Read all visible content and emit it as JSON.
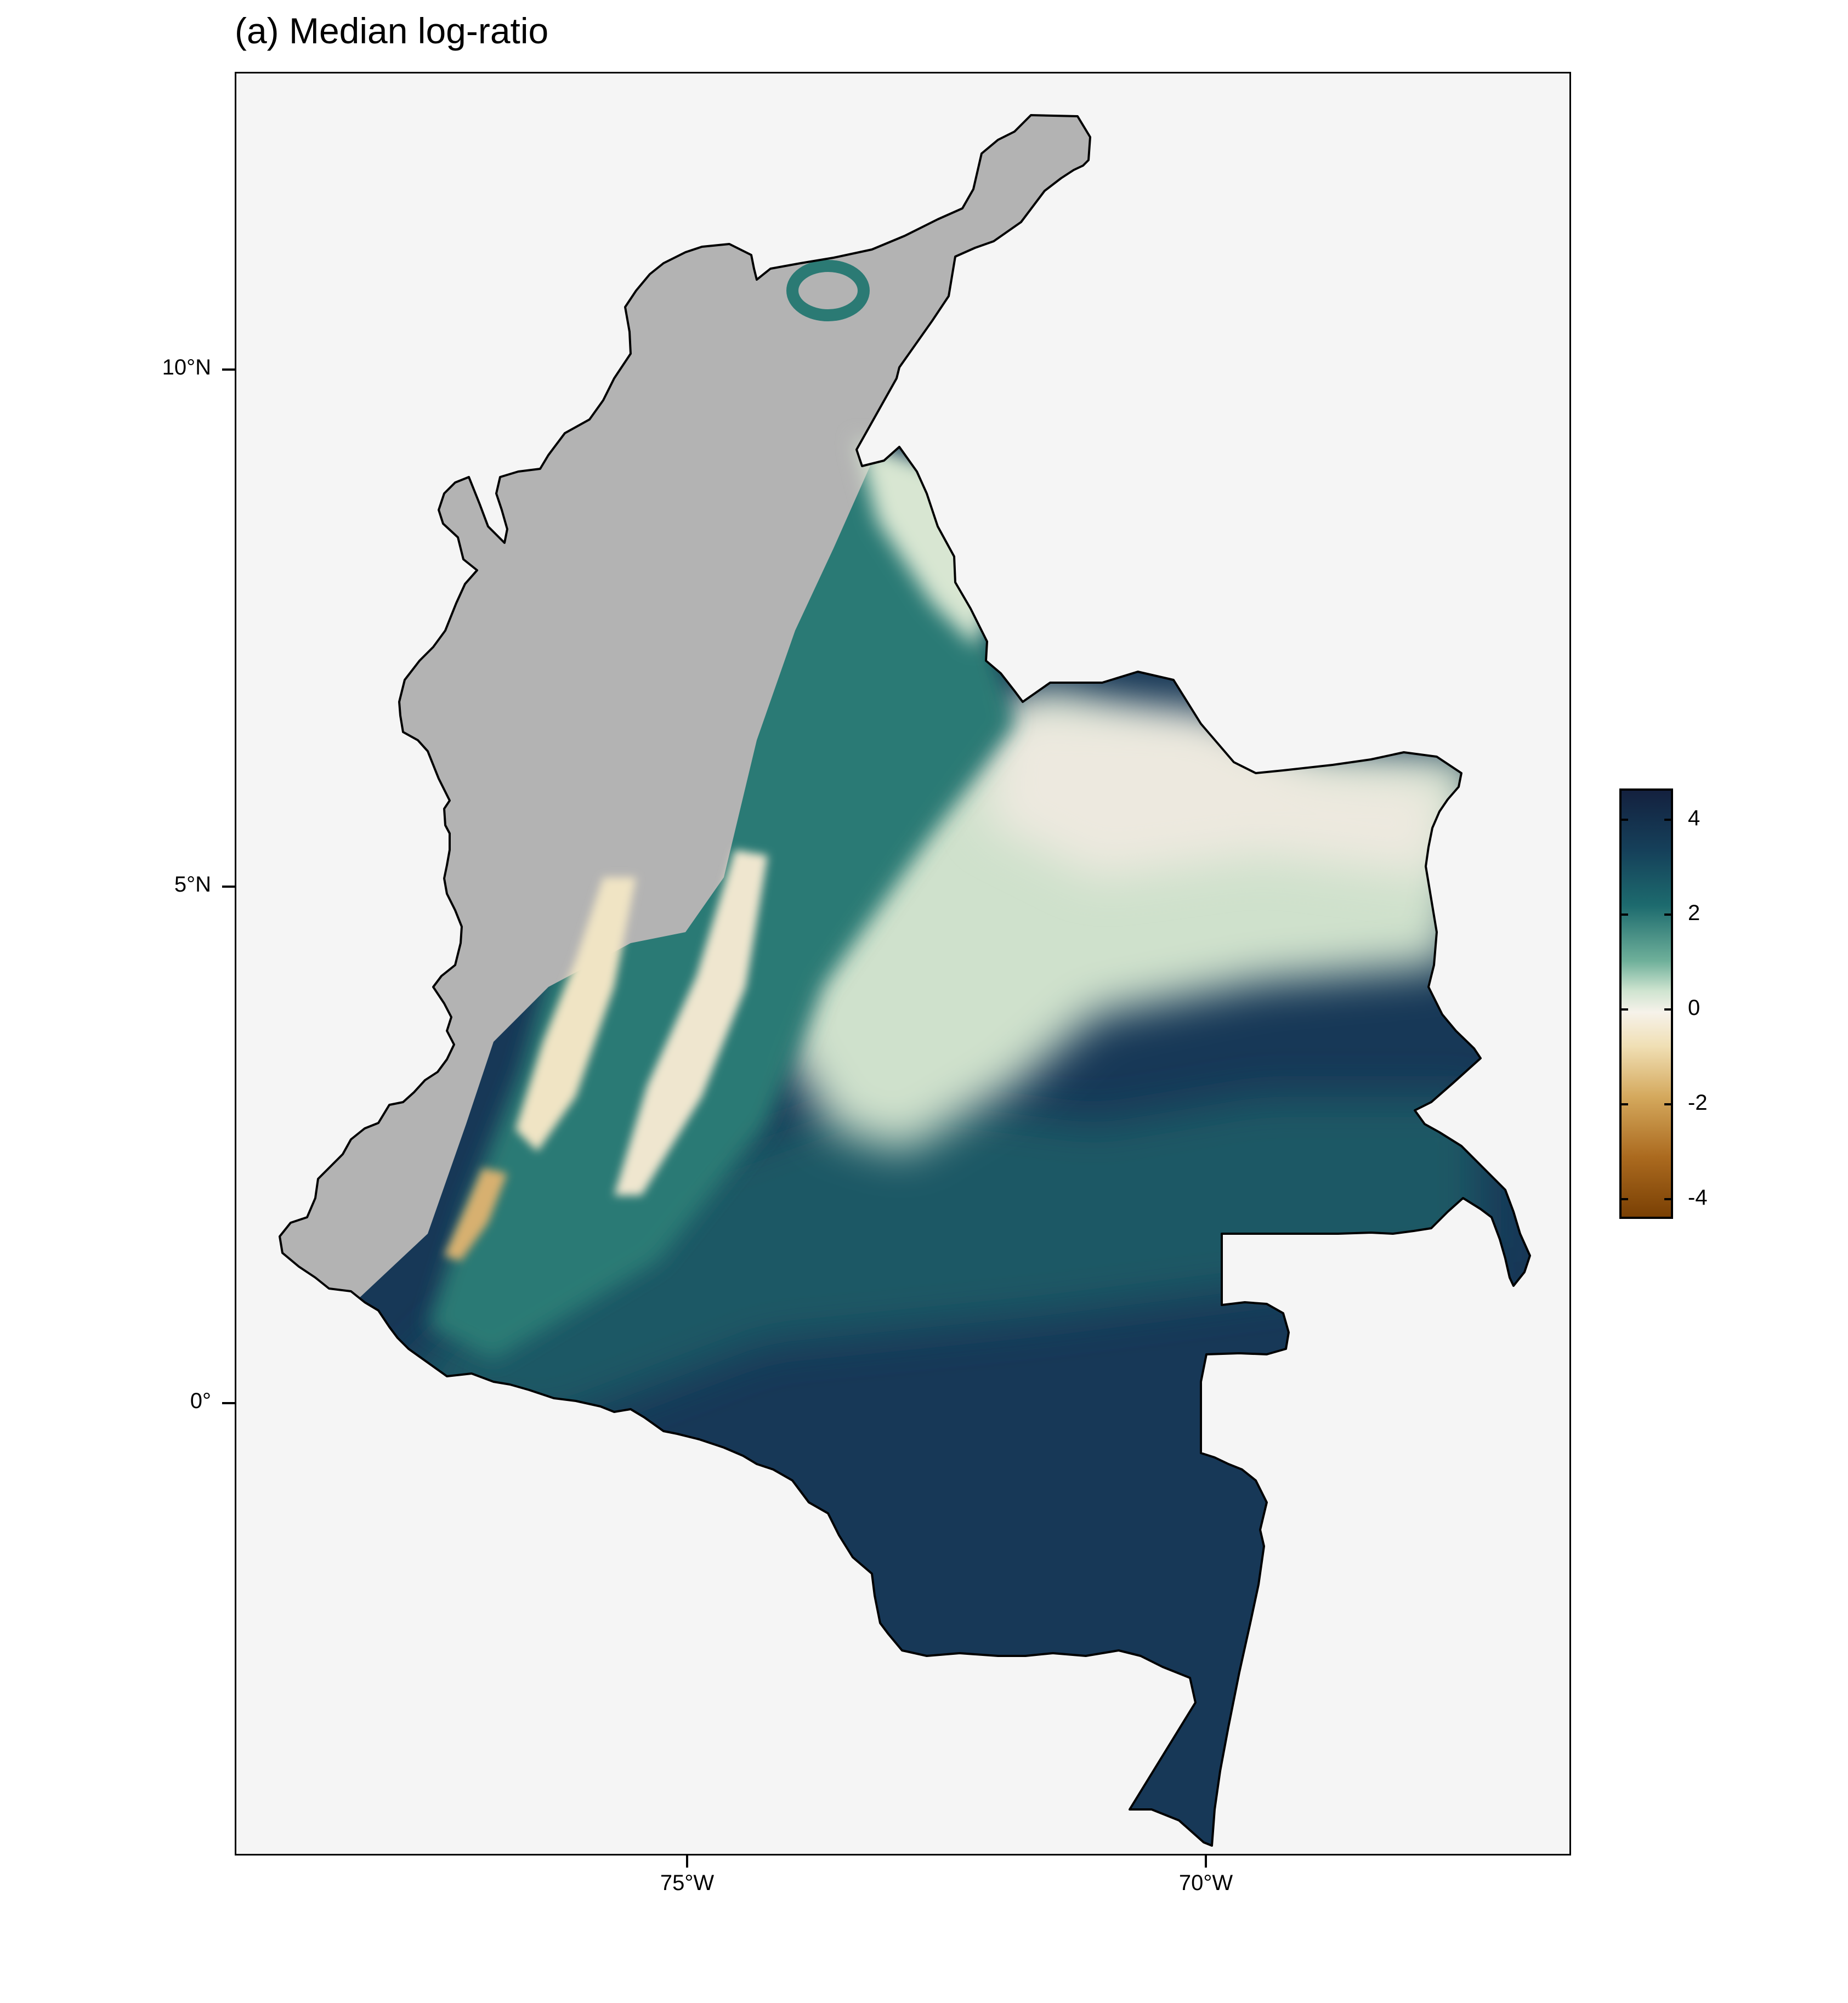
{
  "title": "(a) Median log-ratio",
  "map": {
    "region": "Colombia",
    "variable": "Median log-ratio",
    "latitude_ticks": [
      "10°N",
      "5°N",
      "0°"
    ],
    "longitude_ticks": [
      "75°W",
      "70°W"
    ],
    "panel_background": "#f5f5f5",
    "no_data_color": "#b3b3b3",
    "outline_color": "#000000"
  },
  "legend": {
    "labels": [
      "4",
      "2",
      "0",
      "-2",
      "-4"
    ],
    "palette": [
      "#14213f",
      "#1d6b6e",
      "#cfe4d0",
      "#f6f2ea",
      "#d4a85c",
      "#7a4004"
    ]
  }
}
